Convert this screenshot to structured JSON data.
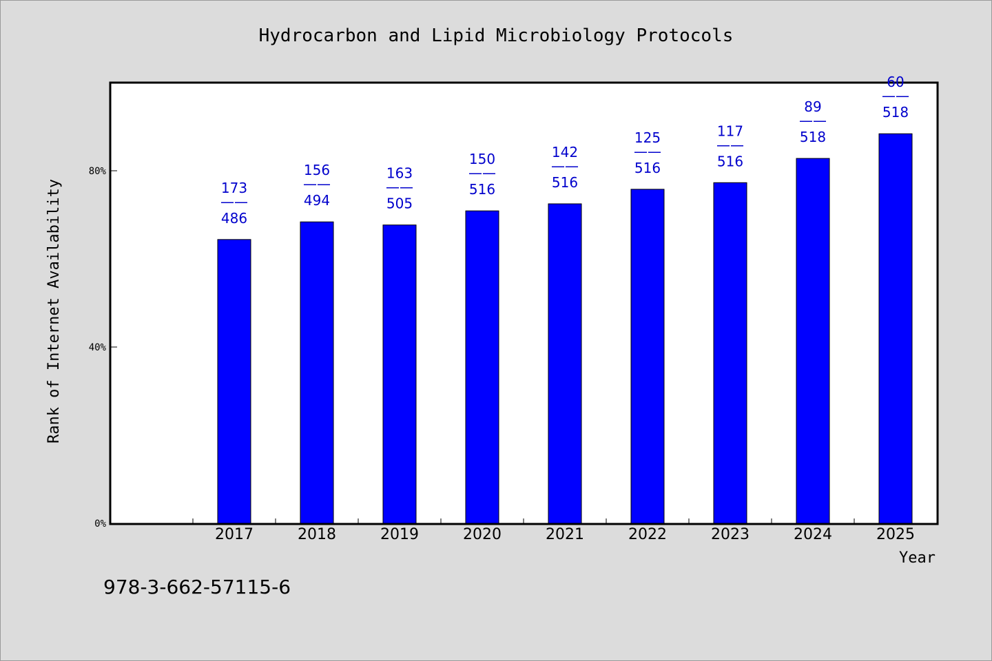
{
  "chart_data": {
    "type": "bar",
    "title": "Hydrocarbon and Lipid Microbiology Protocols",
    "xlabel": "Year",
    "ylabel": "Rank of Internet Availability",
    "ylim": [
      0,
      100
    ],
    "yticks": [
      0,
      40,
      80
    ],
    "ytick_labels": [
      "0%",
      "40%",
      "80%"
    ],
    "categories": [
      "2017",
      "2018",
      "2019",
      "2020",
      "2021",
      "2022",
      "2023",
      "2024",
      "2025"
    ],
    "values": [
      64.4,
      68.4,
      67.7,
      70.9,
      72.5,
      75.8,
      77.3,
      82.8,
      88.4
    ],
    "data_labels": [
      {
        "top": "173",
        "sep": "——",
        "bottom": "486"
      },
      {
        "top": "156",
        "sep": "——",
        "bottom": "494"
      },
      {
        "top": "163",
        "sep": "——",
        "bottom": "505"
      },
      {
        "top": "150",
        "sep": "——",
        "bottom": "516"
      },
      {
        "top": "142",
        "sep": "——",
        "bottom": "516"
      },
      {
        "top": "125",
        "sep": "——",
        "bottom": "516"
      },
      {
        "top": "117",
        "sep": "——",
        "bottom": "516"
      },
      {
        "top": "89",
        "sep": "——",
        "bottom": "518"
      },
      {
        "top": "60",
        "sep": "——",
        "bottom": "518"
      }
    ],
    "bar_color": "#0000ff",
    "label_color": "#0000cc",
    "plot_background": "#ffffff",
    "page_background": "#dcdcdc",
    "grid": false,
    "legend": "none"
  },
  "footer": {
    "isbn": "978-3-662-57115-6"
  }
}
